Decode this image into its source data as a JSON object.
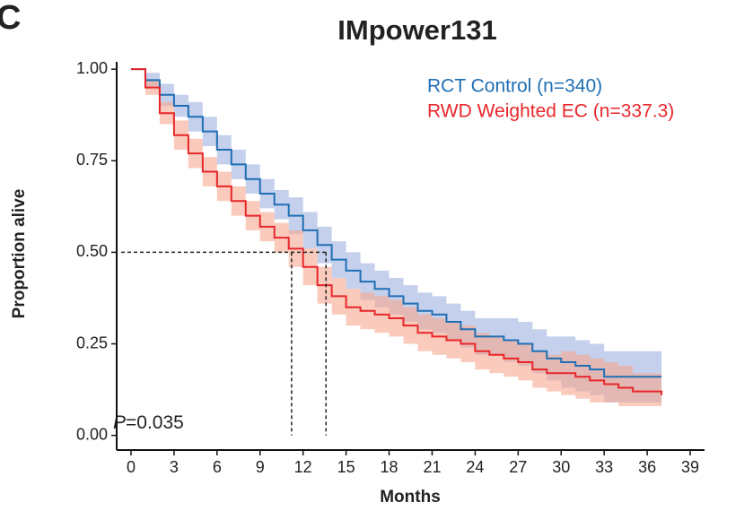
{
  "chart_data": {
    "type": "line",
    "panel": "C",
    "title": "IMpower131",
    "x_label": "Months",
    "y_label": "Proportion alive",
    "annotation": {
      "italic": "P",
      "text": "=0.035"
    },
    "x": [
      0,
      1,
      2,
      3,
      4,
      5,
      6,
      7,
      8,
      9,
      10,
      11,
      12,
      13,
      14,
      15,
      16,
      17,
      18,
      19,
      20,
      21,
      22,
      23,
      24,
      25,
      26,
      27,
      28,
      29,
      30,
      31,
      32,
      33,
      34,
      35,
      36,
      37
    ],
    "series": [
      {
        "name": "RCT Control (n=340)",
        "color": "#1f6fb4",
        "band_color": "#9fb0e0",
        "values": [
          1.0,
          0.97,
          0.93,
          0.9,
          0.87,
          0.83,
          0.78,
          0.74,
          0.7,
          0.66,
          0.63,
          0.6,
          0.56,
          0.52,
          0.48,
          0.45,
          0.42,
          0.4,
          0.38,
          0.36,
          0.34,
          0.33,
          0.31,
          0.29,
          0.27,
          0.27,
          0.26,
          0.25,
          0.23,
          0.21,
          0.2,
          0.19,
          0.18,
          0.16,
          0.16,
          0.16,
          0.16,
          0.16
        ],
        "lower": [
          1.0,
          0.95,
          0.9,
          0.87,
          0.83,
          0.79,
          0.74,
          0.7,
          0.66,
          0.62,
          0.59,
          0.55,
          0.51,
          0.47,
          0.43,
          0.4,
          0.37,
          0.35,
          0.33,
          0.31,
          0.29,
          0.28,
          0.26,
          0.24,
          0.22,
          0.22,
          0.2,
          0.19,
          0.17,
          0.15,
          0.13,
          0.12,
          0.11,
          0.09,
          0.09,
          0.09,
          0.09,
          0.09
        ],
        "upper": [
          1.0,
          0.99,
          0.96,
          0.93,
          0.91,
          0.87,
          0.82,
          0.78,
          0.74,
          0.7,
          0.67,
          0.65,
          0.61,
          0.57,
          0.53,
          0.5,
          0.47,
          0.45,
          0.43,
          0.41,
          0.39,
          0.38,
          0.36,
          0.34,
          0.32,
          0.32,
          0.32,
          0.31,
          0.29,
          0.27,
          0.27,
          0.26,
          0.25,
          0.23,
          0.23,
          0.23,
          0.23,
          0.23
        ]
      },
      {
        "name": "RWD Weighted EC (n=337.3)",
        "color": "#e8262a",
        "band_color": "#f7a98f",
        "values": [
          1.0,
          0.95,
          0.88,
          0.82,
          0.77,
          0.72,
          0.68,
          0.64,
          0.6,
          0.57,
          0.54,
          0.51,
          0.46,
          0.41,
          0.38,
          0.35,
          0.34,
          0.33,
          0.32,
          0.3,
          0.28,
          0.27,
          0.26,
          0.25,
          0.23,
          0.22,
          0.21,
          0.2,
          0.18,
          0.17,
          0.17,
          0.16,
          0.15,
          0.14,
          0.13,
          0.12,
          0.12,
          0.11
        ],
        "lower": [
          1.0,
          0.93,
          0.85,
          0.78,
          0.73,
          0.68,
          0.64,
          0.6,
          0.56,
          0.53,
          0.5,
          0.46,
          0.41,
          0.36,
          0.33,
          0.3,
          0.29,
          0.28,
          0.27,
          0.25,
          0.23,
          0.22,
          0.21,
          0.2,
          0.18,
          0.17,
          0.16,
          0.15,
          0.13,
          0.12,
          0.11,
          0.1,
          0.09,
          0.09,
          0.08,
          0.08,
          0.08,
          0.07
        ],
        "upper": [
          1.0,
          0.97,
          0.91,
          0.86,
          0.81,
          0.76,
          0.72,
          0.68,
          0.64,
          0.61,
          0.58,
          0.56,
          0.51,
          0.46,
          0.43,
          0.4,
          0.39,
          0.38,
          0.37,
          0.35,
          0.33,
          0.32,
          0.31,
          0.3,
          0.28,
          0.27,
          0.26,
          0.25,
          0.23,
          0.22,
          0.23,
          0.22,
          0.21,
          0.2,
          0.19,
          0.17,
          0.17,
          0.16
        ]
      }
    ],
    "medians": [
      11.2,
      13.6
    ],
    "median_y": 0.5,
    "xlim": [
      -1,
      40
    ],
    "xticks": [
      0,
      3,
      6,
      9,
      12,
      15,
      18,
      21,
      24,
      27,
      30,
      33,
      36,
      39
    ],
    "ylim": [
      -0.04,
      1.02
    ],
    "yticks": [
      {
        "value": 0,
        "label": "0.00"
      },
      {
        "value": 0.25,
        "label": "0.25"
      },
      {
        "value": 0.5,
        "label": "0.50"
      },
      {
        "value": 0.75,
        "label": "0.75"
      },
      {
        "value": 1,
        "label": "1.00"
      }
    ],
    "grid": false
  }
}
